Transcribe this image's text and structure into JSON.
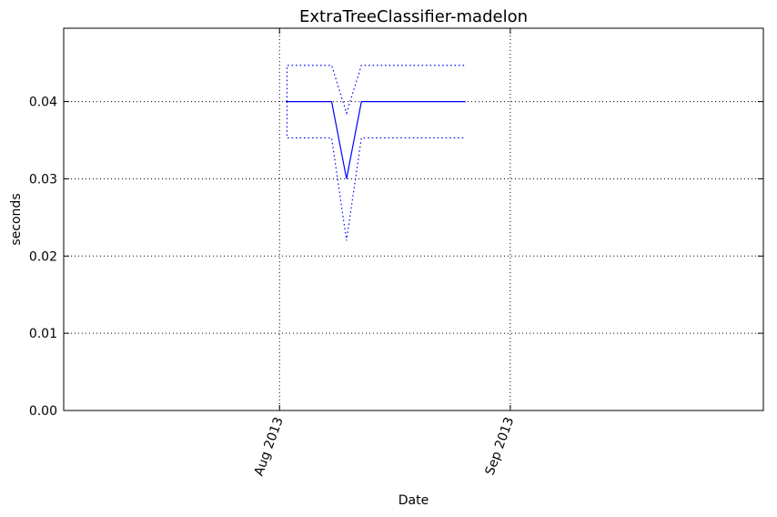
{
  "chart_data": {
    "type": "line",
    "title": "ExtraTreeClassifier-madelon",
    "xlabel": "Date",
    "ylabel": "seconds",
    "x_axis": {
      "kind": "date",
      "xlim": [
        "2013-07-03",
        "2013-10-05"
      ],
      "ticks": [
        {
          "date": "2013-08-01",
          "label": "Aug 2013"
        },
        {
          "date": "2013-09-01",
          "label": "Sep 2013"
        }
      ]
    },
    "y_axis": {
      "ylim": [
        0,
        0.0495
      ],
      "ticks": [
        {
          "value": 0.0,
          "label": "0.00"
        },
        {
          "value": 0.01,
          "label": "0.01"
        },
        {
          "value": 0.02,
          "label": "0.02"
        },
        {
          "value": 0.03,
          "label": "0.03"
        },
        {
          "value": 0.04,
          "label": "0.04"
        }
      ]
    },
    "grid": true,
    "series": [
      {
        "role": "mean",
        "style": "solid",
        "color": "#0000ff",
        "points": [
          {
            "x": "2013-08-02",
            "y": 0.04
          },
          {
            "x": "2013-08-08",
            "y": 0.04
          },
          {
            "x": "2013-08-10",
            "y": 0.03
          },
          {
            "x": "2013-08-12",
            "y": 0.04
          },
          {
            "x": "2013-08-26",
            "y": 0.04
          }
        ]
      },
      {
        "role": "upper",
        "style": "dotted",
        "color": "#0000ff",
        "points": [
          {
            "x": "2013-08-02",
            "y": 0.04
          },
          {
            "x": "2013-08-02",
            "y": 0.0447
          },
          {
            "x": "2013-08-08",
            "y": 0.0447
          },
          {
            "x": "2013-08-10",
            "y": 0.0385
          },
          {
            "x": "2013-08-12",
            "y": 0.0447
          },
          {
            "x": "2013-08-26",
            "y": 0.0447
          }
        ]
      },
      {
        "role": "lower",
        "style": "dotted",
        "color": "#0000ff",
        "points": [
          {
            "x": "2013-08-02",
            "y": 0.04
          },
          {
            "x": "2013-08-02",
            "y": 0.0353
          },
          {
            "x": "2013-08-08",
            "y": 0.0353
          },
          {
            "x": "2013-08-10",
            "y": 0.022
          },
          {
            "x": "2013-08-12",
            "y": 0.0353
          },
          {
            "x": "2013-08-26",
            "y": 0.0353
          }
        ]
      }
    ]
  }
}
